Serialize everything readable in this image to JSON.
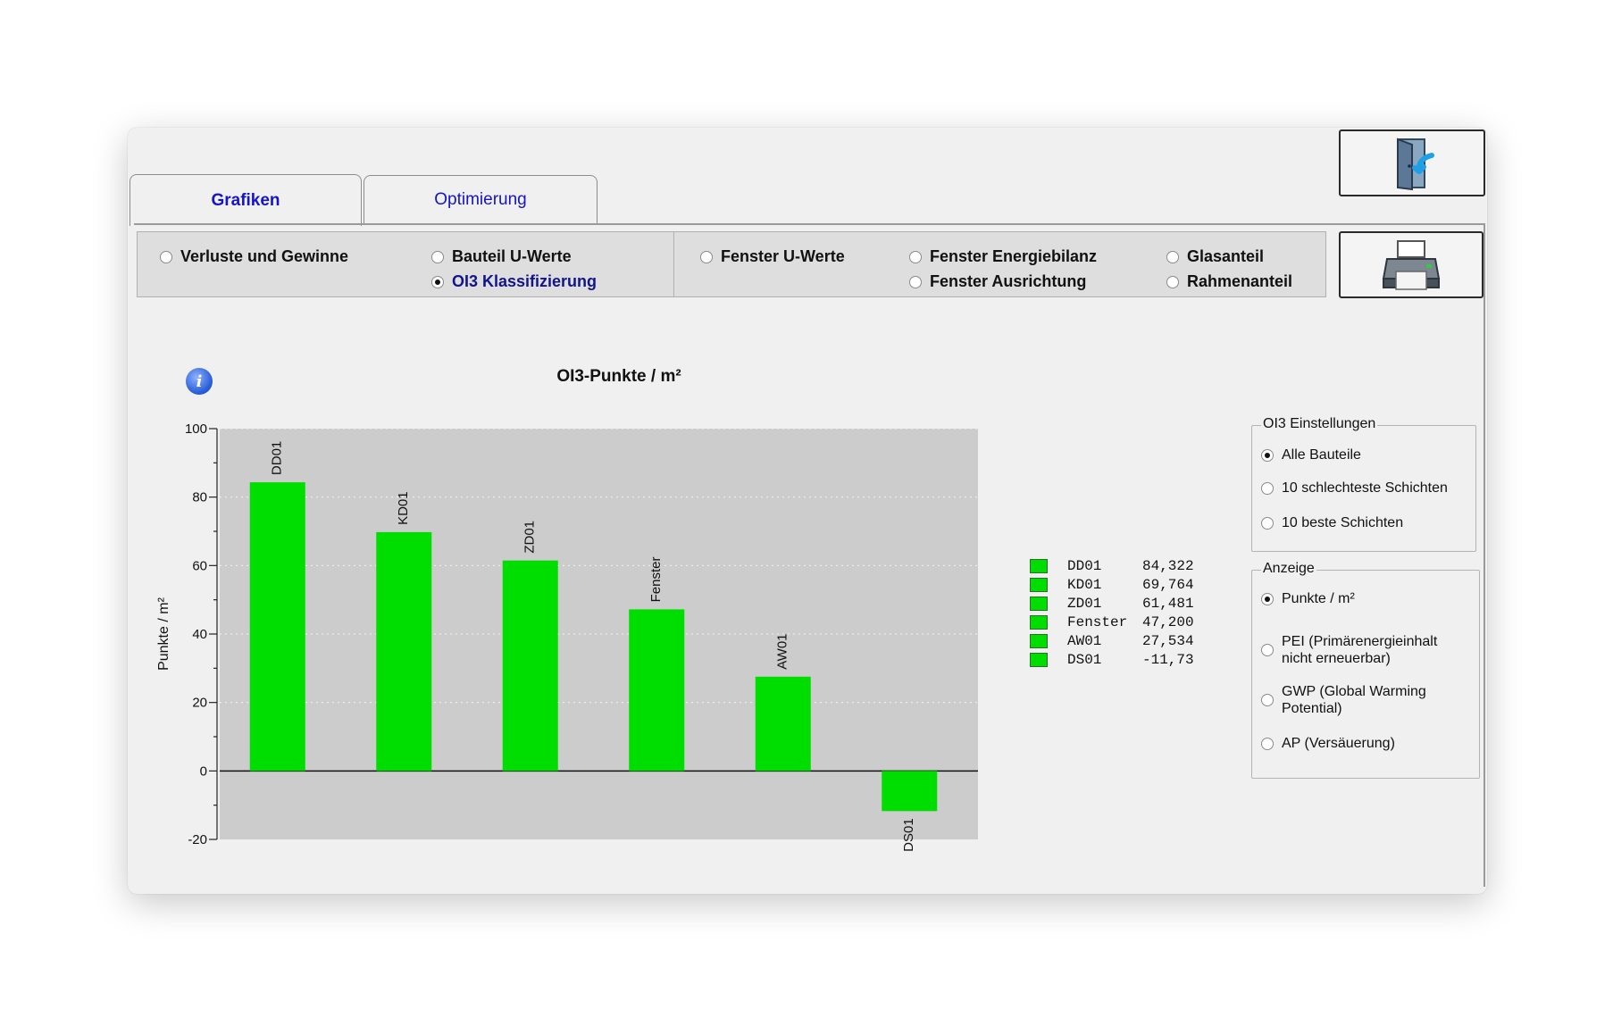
{
  "tabs": [
    {
      "label": "Grafiken",
      "active": true
    },
    {
      "label": "Optimierung",
      "active": false
    }
  ],
  "selectors": [
    {
      "label": "Verluste und Gewinne",
      "checked": false
    },
    {
      "label": "Bauteil U-Werte",
      "checked": false
    },
    {
      "label": "OI3 Klassifizierung",
      "checked": true
    },
    {
      "label": "Fenster U-Werte",
      "checked": false
    },
    {
      "label": "Fenster Energiebilanz",
      "checked": false
    },
    {
      "label": "Fenster Ausrichtung",
      "checked": false
    },
    {
      "label": "Glasanteil",
      "checked": false
    },
    {
      "label": "Rahmenanteil",
      "checked": false
    }
  ],
  "buttons": {
    "exit_icon": "door-exit-icon",
    "print_icon": "printer-icon"
  },
  "chart_data": {
    "type": "bar",
    "title": "OI3-Punkte / m²",
    "ylabel": "Punkte / m²",
    "xlabel": "",
    "categories": [
      "DD01",
      "KD01",
      "ZD01",
      "Fenster",
      "AW01",
      "DS01"
    ],
    "values": [
      84.322,
      69.764,
      61.481,
      47.2,
      27.534,
      -11.73
    ],
    "ylim": [
      -20,
      100
    ],
    "yticks": [
      100,
      80,
      60,
      40,
      20,
      0,
      -20
    ],
    "grid": true,
    "bar_color": "#00dd00",
    "plot_background": "#cccccc",
    "legend_placement": "right",
    "legend": [
      {
        "name": "DD01",
        "value": "84,322"
      },
      {
        "name": "KD01",
        "value": "69,764"
      },
      {
        "name": "ZD01",
        "value": "61,481"
      },
      {
        "name": "Fenster",
        "value": "47,200"
      },
      {
        "name": "AW01",
        "value": "27,534"
      },
      {
        "name": "DS01",
        "value": "-11,73"
      }
    ]
  },
  "oi3_settings": {
    "title": "OI3 Einstellungen",
    "options": [
      {
        "label": "Alle Bauteile",
        "checked": true
      },
      {
        "label": "10 schlechteste Schichten",
        "checked": false
      },
      {
        "label": "10 beste Schichten",
        "checked": false
      }
    ]
  },
  "display": {
    "title": "Anzeige",
    "options": [
      {
        "line1": "Punkte / m²",
        "line2": "",
        "checked": true
      },
      {
        "line1": "PEI (Primärenergieinhalt",
        "line2": "nicht erneuerbar)",
        "checked": false
      },
      {
        "line1": "GWP (Global Warming",
        "line2": "Potential)",
        "checked": false
      },
      {
        "line1": "AP (Versäuerung)",
        "line2": "",
        "checked": false
      }
    ]
  }
}
